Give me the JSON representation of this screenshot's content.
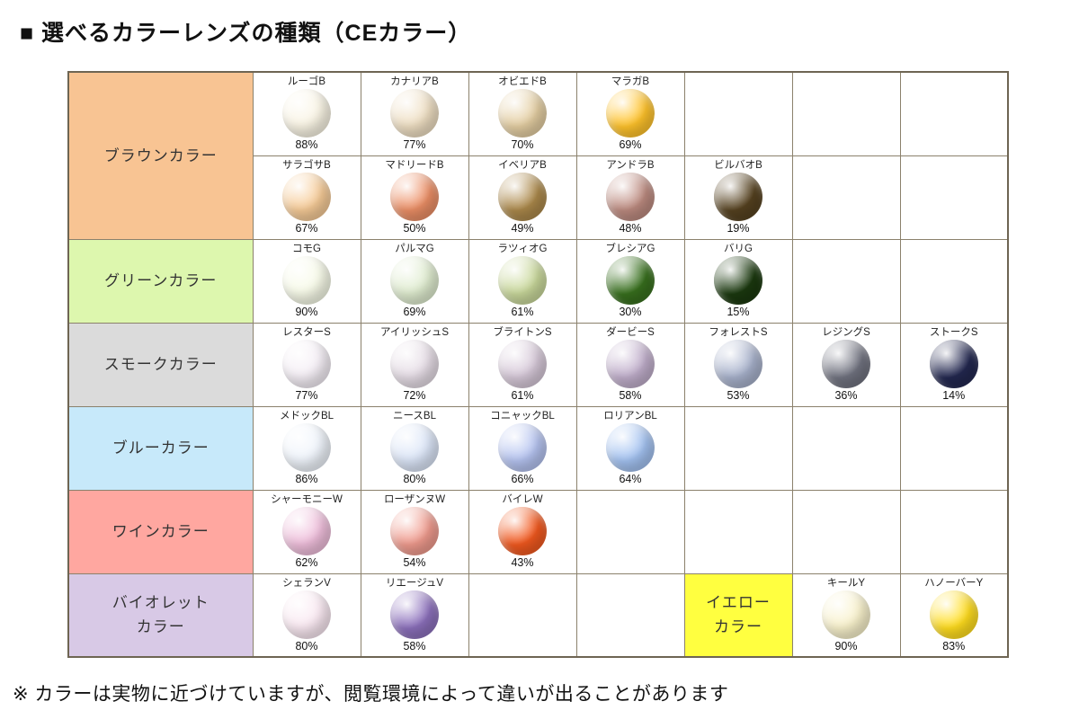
{
  "title": "■ 選べるカラーレンズの種類（CEカラー）",
  "footer": "※ カラーは実物に近づけていますが、閲覧環境によって違いが出ることがあります",
  "table": {
    "rows": [
      {
        "category": "ブラウンカラー",
        "bg": "#F8C493",
        "subrows": [
          [
            {
              "name": "ルーゴB",
              "pct": "88%",
              "color": "#F9F4E4"
            },
            {
              "name": "カナリアB",
              "pct": "77%",
              "color": "#EEDEC2"
            },
            {
              "name": "オビエドB",
              "pct": "70%",
              "color": "#E4CEA2"
            },
            {
              "name": "マラガB",
              "pct": "69%",
              "color": "#FFC32B"
            },
            null,
            null,
            null
          ],
          [
            {
              "name": "サラゴサB",
              "pct": "67%",
              "color": "#F6CB97"
            },
            {
              "name": "マドリードB",
              "pct": "50%",
              "color": "#EC8F66"
            },
            {
              "name": "イベリアB",
              "pct": "49%",
              "color": "#AC894B"
            },
            {
              "name": "アンドラB",
              "pct": "48%",
              "color": "#BD8B80"
            },
            {
              "name": "ビルバオB",
              "pct": "19%",
              "color": "#564220"
            },
            null,
            null
          ]
        ]
      },
      {
        "category": "グリーンカラー",
        "bg": "#DDF7AE",
        "subrows": [
          [
            {
              "name": "コモG",
              "pct": "90%",
              "color": "#F7FAE8"
            },
            {
              "name": "パルマG",
              "pct": "69%",
              "color": "#DFECCF"
            },
            {
              "name": "ラツィオG",
              "pct": "61%",
              "color": "#C9D89B"
            },
            {
              "name": "ブレシアG",
              "pct": "30%",
              "color": "#38701E"
            },
            {
              "name": "バリG",
              "pct": "15%",
              "color": "#1B390F"
            },
            null,
            null
          ]
        ]
      },
      {
        "category": "スモークカラー",
        "bg": "#DBDBDB",
        "subrows": [
          [
            {
              "name": "レスターS",
              "pct": "77%",
              "color": "#F4EEF5"
            },
            {
              "name": "アイリッシュS",
              "pct": "72%",
              "color": "#E5DCE5"
            },
            {
              "name": "ブライトンS",
              "pct": "61%",
              "color": "#D6C8D8"
            },
            {
              "name": "ダービーS",
              "pct": "58%",
              "color": "#C0AECB"
            },
            {
              "name": "フォレストS",
              "pct": "53%",
              "color": "#A8B2CC"
            },
            {
              "name": "レジングS",
              "pct": "36%",
              "color": "#717380"
            },
            {
              "name": "ストークS",
              "pct": "14%",
              "color": "#232850"
            }
          ]
        ]
      },
      {
        "category": "ブルーカラー",
        "bg": "#C7E9FA",
        "subrows": [
          [
            {
              "name": "メドックBL",
              "pct": "86%",
              "color": "#EFF4FB"
            },
            {
              "name": "ニースBL",
              "pct": "80%",
              "color": "#DBE5F7"
            },
            {
              "name": "コニャックBL",
              "pct": "66%",
              "color": "#B5C3F0"
            },
            {
              "name": "ロリアンBL",
              "pct": "64%",
              "color": "#A3C2F1"
            },
            null,
            null,
            null
          ]
        ]
      },
      {
        "category": "ワインカラー",
        "bg": "#FFA7A0",
        "subrows": [
          [
            {
              "name": "シャーモニーW",
              "pct": "62%",
              "color": "#EFBEDB"
            },
            {
              "name": "ローザンヌW",
              "pct": "54%",
              "color": "#F09B8E"
            },
            {
              "name": "バイレW",
              "pct": "43%",
              "color": "#F2591F"
            },
            null,
            null,
            null,
            null
          ]
        ]
      },
      {
        "category": "バイオレット\nカラー",
        "bg": "#D8C9E6",
        "subrows": [
          [
            {
              "name": "シェランV",
              "pct": "80%",
              "color": "#F9E8F1"
            },
            {
              "name": "リエージュV",
              "pct": "58%",
              "color": "#8C70BC"
            },
            null,
            null,
            {
              "type": "category",
              "label": "イエロー\nカラー",
              "bg": "#FFFF40"
            },
            {
              "name": "キールY",
              "pct": "90%",
              "color": "#F8F1CB"
            },
            {
              "name": "ハノーバーY",
              "pct": "83%",
              "color": "#FFDD1E"
            }
          ]
        ]
      }
    ]
  }
}
